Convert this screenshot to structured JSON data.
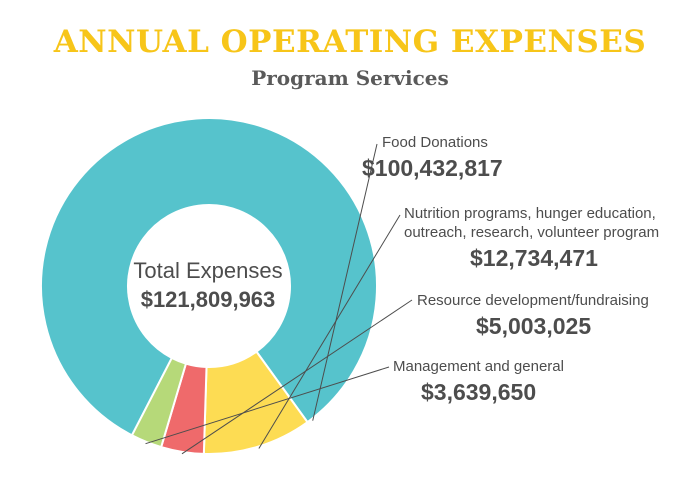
{
  "header": {
    "title": "ANNUAL OPERATING EXPENSES",
    "subtitle": "Program Services"
  },
  "center": {
    "label": "Total Expenses",
    "value": "$121,809,963"
  },
  "chart_data": {
    "type": "pie",
    "title": "ANNUAL OPERATING EXPENSES",
    "subtitle": "Program Services",
    "categories": [
      "Food Donations",
      "Nutrition programs, hunger education, outreach, research, volunteer program",
      "Resource development/fundraising",
      "Management and general"
    ],
    "values": [
      100432817,
      12734471,
      5003025,
      3639650
    ],
    "value_labels": [
      "$100,432,817",
      "$12,734,471",
      "$5,003,025",
      "$3,639,650"
    ],
    "total": 121809963,
    "colors": [
      "#56c3cc",
      "#fddc53",
      "#ef6a6b",
      "#b6d979"
    ],
    "donut": true
  },
  "labels": [
    {
      "name_lines": [
        "Food Donations"
      ],
      "value": "$100,432,817"
    },
    {
      "name_lines": [
        "Nutrition programs, hunger education,",
        "outreach, research, volunteer program"
      ],
      "value": "$12,734,471"
    },
    {
      "name_lines": [
        "Resource development/fundraising"
      ],
      "value": "$5,003,025"
    },
    {
      "name_lines": [
        "Management and general"
      ],
      "value": "$3,639,650"
    }
  ]
}
